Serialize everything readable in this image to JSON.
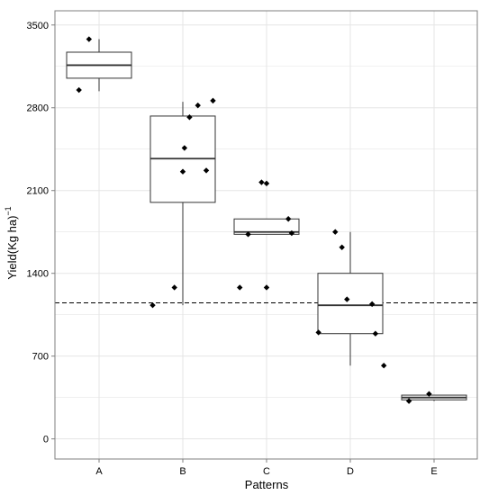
{
  "chart_data": {
    "type": "boxplot",
    "title": "",
    "xlabel": "Patterns",
    "ylabel": "Yield(Kg ha)",
    "ylabel_superscript": "−1",
    "categories": [
      "A",
      "B",
      "C",
      "D",
      "E"
    ],
    "ylim": [
      -170,
      3620
    ],
    "yticks": [
      0,
      700,
      1400,
      2100,
      2800,
      3500
    ],
    "grid": true,
    "legend": "none",
    "reference_line": {
      "y": 1150,
      "style": "dashed"
    },
    "boxes": [
      {
        "category": "A",
        "whisker_low": 2940,
        "q1": 3050,
        "median": 3160,
        "q3": 3270,
        "whisker_high": 3380
      },
      {
        "category": "B",
        "whisker_low": 1130,
        "q1": 2000,
        "median": 2370,
        "q3": 2730,
        "whisker_high": 2850
      },
      {
        "category": "C",
        "whisker_low": 1730,
        "q1": 1730,
        "median": 1750,
        "q3": 1860,
        "whisker_high": 1860
      },
      {
        "category": "D",
        "whisker_low": 620,
        "q1": 890,
        "median": 1130,
        "q3": 1400,
        "whisker_high": 1750
      },
      {
        "category": "E",
        "whisker_low": 320,
        "q1": 330,
        "median": 350,
        "q3": 370,
        "whisker_high": 370
      }
    ],
    "points": [
      {
        "category": "A",
        "jitter": -0.24,
        "y": 2950
      },
      {
        "category": "A",
        "jitter": -0.12,
        "y": 3380
      },
      {
        "category": "B",
        "jitter": -0.36,
        "y": 1130
      },
      {
        "category": "B",
        "jitter": -0.1,
        "y": 1280
      },
      {
        "category": "B",
        "jitter": 0.0,
        "y": 2260
      },
      {
        "category": "B",
        "jitter": 0.02,
        "y": 2460
      },
      {
        "category": "B",
        "jitter": 0.08,
        "y": 2720
      },
      {
        "category": "B",
        "jitter": 0.18,
        "y": 2820
      },
      {
        "category": "B",
        "jitter": 0.28,
        "y": 2270
      },
      {
        "category": "B",
        "jitter": 0.36,
        "y": 2860
      },
      {
        "category": "C",
        "jitter": -0.32,
        "y": 1280
      },
      {
        "category": "C",
        "jitter": -0.22,
        "y": 1730
      },
      {
        "category": "C",
        "jitter": -0.06,
        "y": 2170
      },
      {
        "category": "C",
        "jitter": 0.0,
        "y": 2160
      },
      {
        "category": "C",
        "jitter": 0.0,
        "y": 1280
      },
      {
        "category": "C",
        "jitter": 0.26,
        "y": 1860
      },
      {
        "category": "C",
        "jitter": 0.3,
        "y": 1740
      },
      {
        "category": "D",
        "jitter": -0.38,
        "y": 900
      },
      {
        "category": "D",
        "jitter": -0.18,
        "y": 1750
      },
      {
        "category": "D",
        "jitter": -0.1,
        "y": 1620
      },
      {
        "category": "D",
        "jitter": -0.04,
        "y": 1180
      },
      {
        "category": "D",
        "jitter": 0.26,
        "y": 1140
      },
      {
        "category": "D",
        "jitter": 0.3,
        "y": 890
      },
      {
        "category": "D",
        "jitter": 0.4,
        "y": 620
      },
      {
        "category": "E",
        "jitter": -0.3,
        "y": 320
      },
      {
        "category": "E",
        "jitter": -0.06,
        "y": 380
      }
    ],
    "colors": {
      "panel_border": "#7f7f7f",
      "grid": "#e5e5e5",
      "box_fill": "#ffffff",
      "box_stroke": "#333333",
      "point": "#000000",
      "reference_line": "#000000"
    }
  }
}
